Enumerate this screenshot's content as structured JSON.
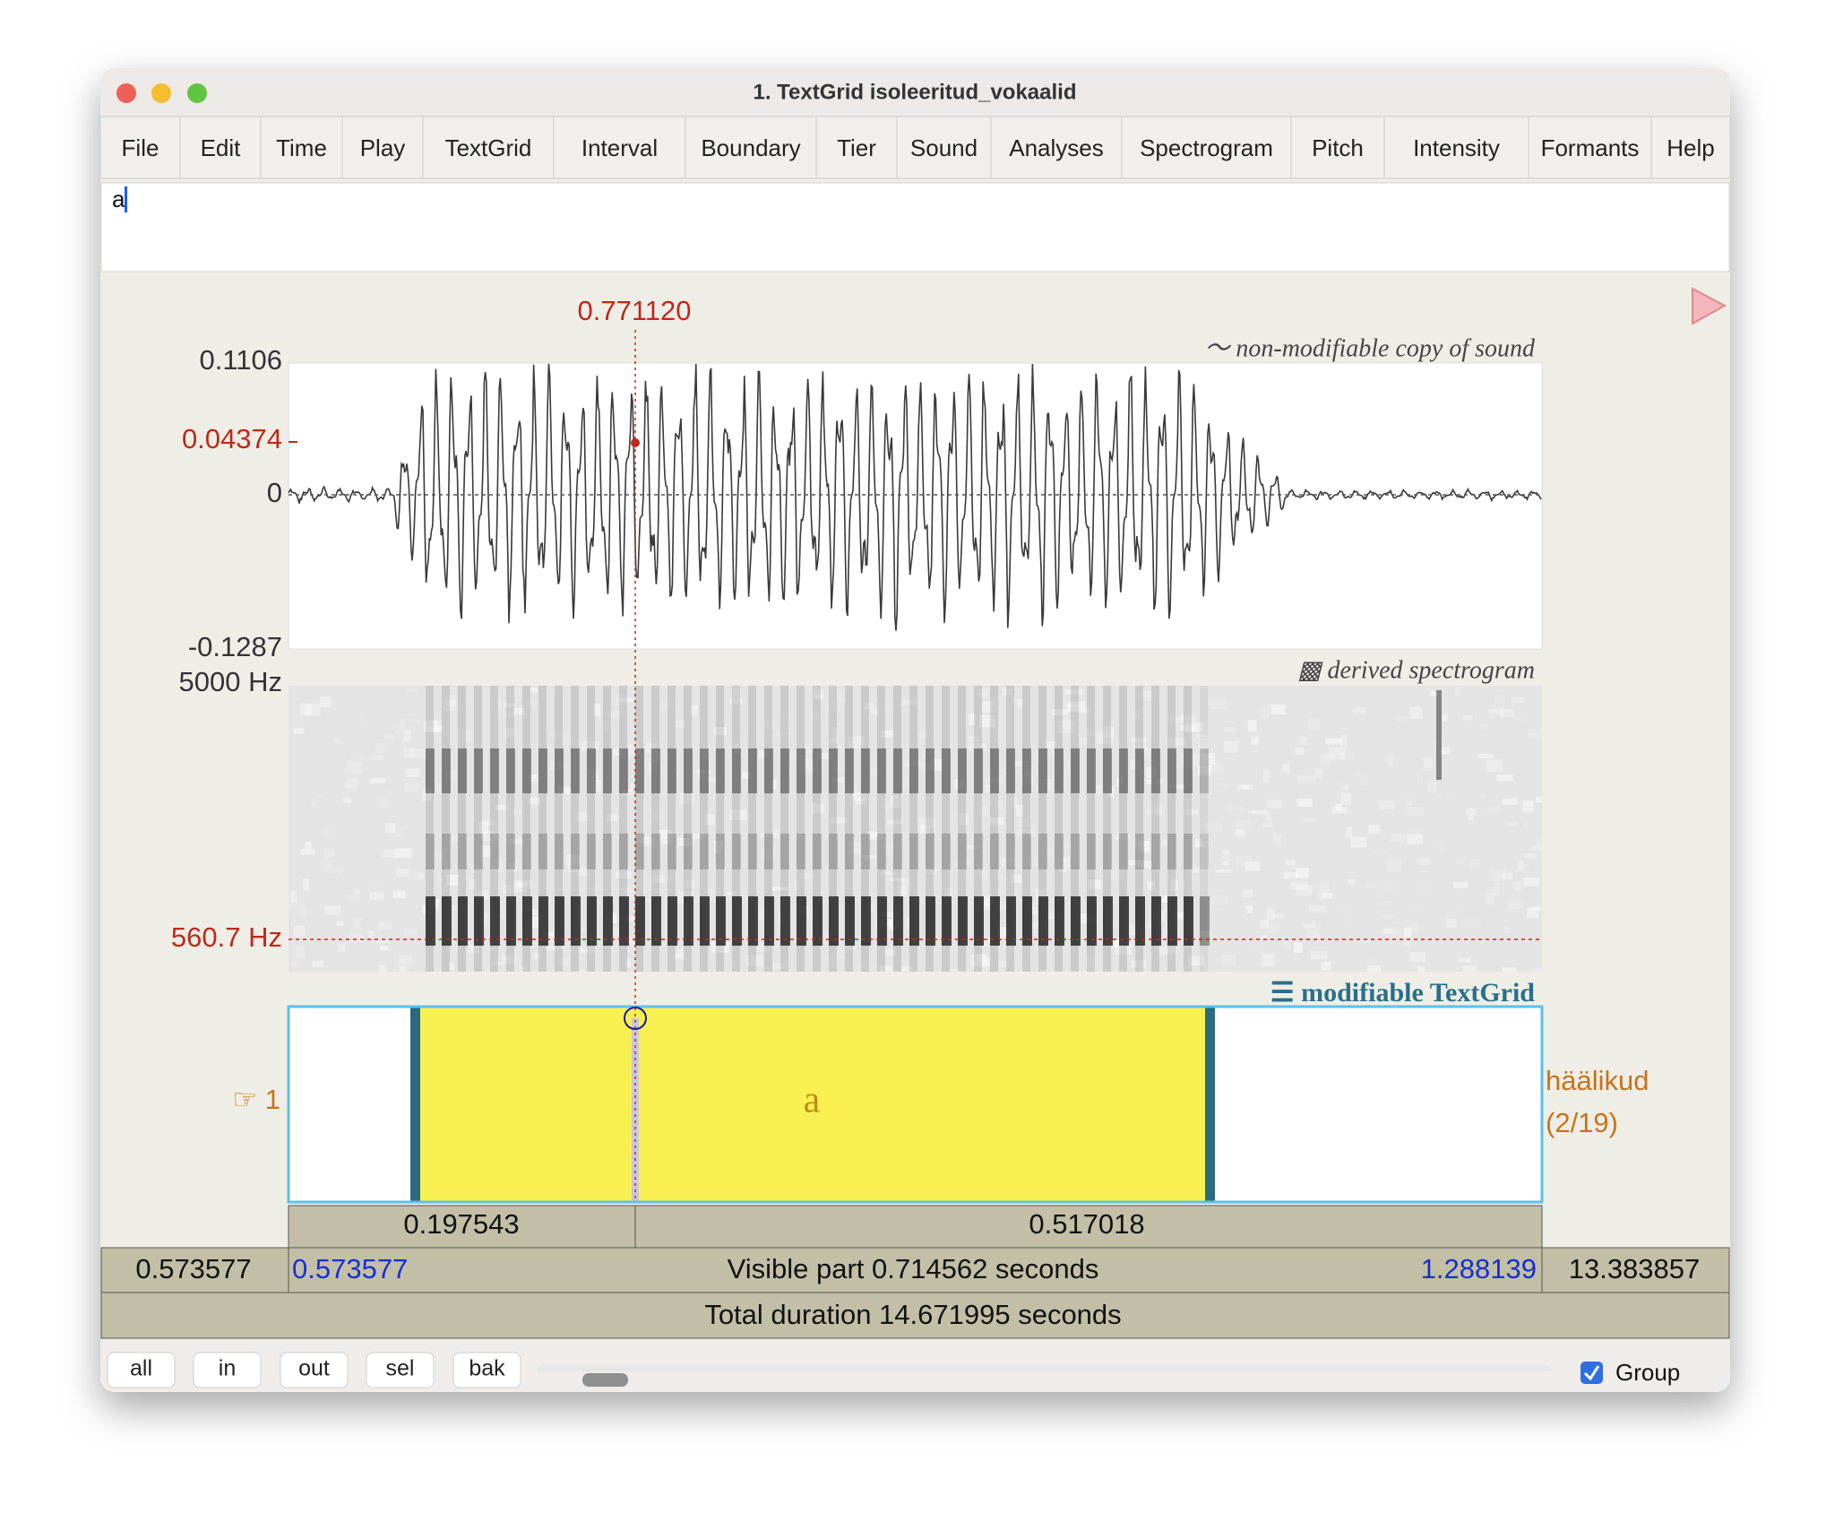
{
  "window": {
    "title": "1. TextGrid isoleeritud_vokaalid"
  },
  "menu": [
    "File",
    "Edit",
    "Time",
    "Play",
    "TextGrid",
    "Interval",
    "Boundary",
    "Tier",
    "Sound",
    "Analyses",
    "Spectrogram",
    "Pitch",
    "Intensity",
    "Formants",
    "Help"
  ],
  "text_field": "a",
  "cursor_time": "0.771120",
  "sound": {
    "label": "〜 non-modifiable copy of sound",
    "ymax": "0.1106",
    "cursor_value": "0.04374",
    "zero": "0",
    "ymin": "-0.1287"
  },
  "spectrogram": {
    "label": "▩ derived spectrogram",
    "fmax": "5000 Hz",
    "cursor_freq": "560.7 Hz"
  },
  "textgrid": {
    "label": "☰ modifiable TextGrid",
    "tier_number": "☞ 1",
    "interval_text": "a",
    "tier_name": "häälikud",
    "tier_count": "(2/19)"
  },
  "durations": [
    "0.197543",
    "0.517018"
  ],
  "visible": {
    "left_outer": "0.573577",
    "start": "0.573577",
    "label": "Visible part 0.714562 seconds",
    "end": "1.288139",
    "right_outer": "13.383857"
  },
  "total": "Total duration 14.671995 seconds",
  "buttons": [
    "all",
    "in",
    "out",
    "sel",
    "bak"
  ],
  "group": "Group"
}
